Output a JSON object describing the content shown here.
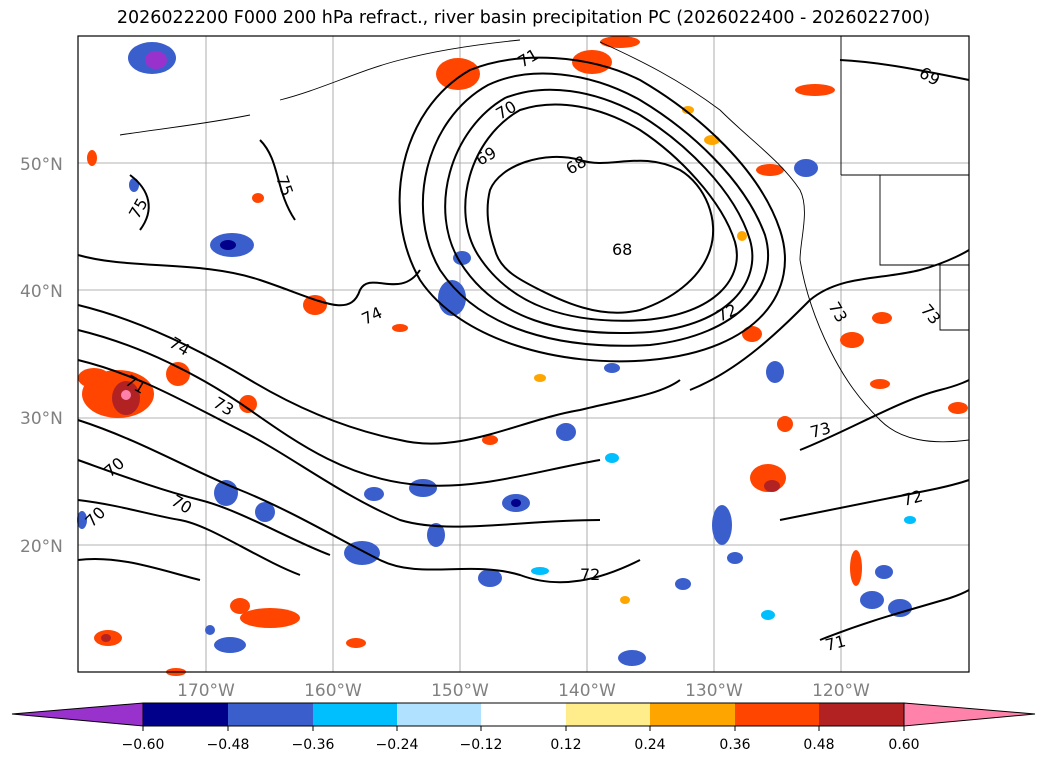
{
  "title": "2026022200 F000 200 hPa refract., river basin precipitation PC (2026022400 - 2026022700)",
  "map": {
    "lat_labels": [
      "50°N",
      "40°N",
      "30°N",
      "20°N"
    ],
    "lon_labels": [
      "170°W",
      "160°W",
      "150°W",
      "140°W",
      "130°W",
      "120°W"
    ],
    "contour_labels": [
      {
        "text": "71"
      },
      {
        "text": "70"
      },
      {
        "text": "69"
      },
      {
        "text": "68"
      },
      {
        "text": "68"
      },
      {
        "text": "69"
      },
      {
        "text": "75"
      },
      {
        "text": "75"
      },
      {
        "text": "74"
      },
      {
        "text": "74"
      },
      {
        "text": "73"
      },
      {
        "text": "72"
      },
      {
        "text": "73"
      },
      {
        "text": "73"
      },
      {
        "text": "73"
      },
      {
        "text": "72"
      },
      {
        "text": "72"
      },
      {
        "text": "71"
      },
      {
        "text": "70"
      },
      {
        "text": "70"
      },
      {
        "text": "70"
      },
      {
        "text": "71"
      }
    ]
  },
  "colorbar": {
    "tick_labels": [
      "−0.60",
      "−0.48",
      "−0.36",
      "−0.24",
      "−0.12",
      "0.12",
      "0.24",
      "0.36",
      "0.48",
      "0.60"
    ],
    "colors": [
      "#9932cc",
      "#00008b",
      "#3a5fcd",
      "#00bfff",
      "#b0e2ff",
      "#ffffff",
      "#ffec8b",
      "#ffa500",
      "#ff4500",
      "#b22222",
      "#ff82ab"
    ]
  }
}
